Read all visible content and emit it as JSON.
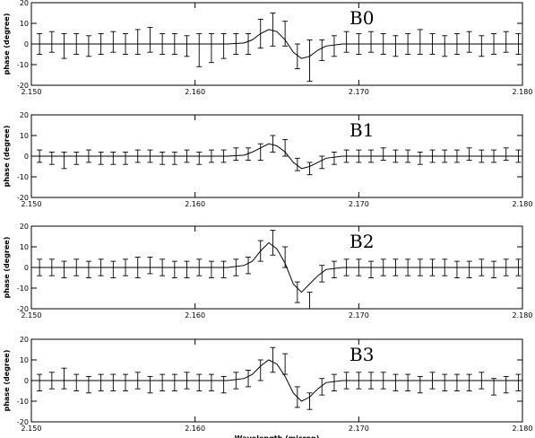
{
  "chart_data": [
    {
      "type": "errorbar",
      "label": "B0",
      "ylabel": "phase (degree)",
      "x": [
        2.1505,
        2.15125,
        2.152,
        2.15275,
        2.1535,
        2.15425,
        2.155,
        2.15575,
        2.1565,
        2.15725,
        2.158,
        2.15875,
        2.1595,
        2.16025,
        2.161,
        2.16175,
        2.1625,
        2.16325,
        2.164,
        2.16475,
        2.1655,
        2.16625,
        2.167,
        2.16775,
        2.1685,
        2.16925,
        2.17,
        2.17075,
        2.1715,
        2.17225,
        2.173,
        2.17375,
        2.1745,
        2.17525,
        2.176,
        2.17675,
        2.1775,
        2.17825,
        2.179,
        2.17975
      ],
      "values": [
        0,
        1,
        -1,
        0,
        -1,
        0,
        1,
        0,
        1,
        2,
        0,
        0,
        -1,
        -3,
        -2,
        -1,
        0,
        0,
        5,
        7,
        5,
        -6,
        -8,
        -3,
        -1,
        1,
        0,
        1,
        0,
        -1,
        0,
        1,
        0,
        -1,
        0,
        1,
        -1,
        0,
        1,
        0
      ],
      "errors": [
        5,
        5,
        6,
        5,
        5,
        5,
        5,
        5,
        6,
        6,
        5,
        5,
        5,
        8,
        7,
        6,
        5,
        5,
        7,
        8,
        6,
        6,
        10,
        5,
        5,
        5,
        5,
        5,
        5,
        5,
        5,
        6,
        5,
        5,
        5,
        5,
        5,
        5,
        5,
        5
      ],
      "model_x": [
        2.15,
        2.162,
        2.163,
        2.1635,
        2.164,
        2.1645,
        2.165,
        2.1655,
        2.166,
        2.1665,
        2.167,
        2.1675,
        2.168,
        2.169,
        2.18
      ],
      "model_values": [
        0,
        0,
        0.5,
        2,
        5,
        7,
        6,
        2,
        -4,
        -7,
        -6,
        -3,
        -1,
        0,
        0
      ],
      "xlim": [
        2.15,
        2.18
      ],
      "ylim": [
        -20,
        20
      ],
      "xticks": [
        {
          "value": 2.15,
          "label": "2.150"
        },
        {
          "value": 2.16,
          "label": "2.160"
        },
        {
          "value": 2.17,
          "label": "2.170"
        },
        {
          "value": 2.18,
          "label": "2.180"
        }
      ],
      "yticks": [
        -20,
        -10,
        0,
        10,
        20
      ]
    },
    {
      "type": "errorbar",
      "label": "B1",
      "ylabel": "phase (degree)",
      "x": [
        2.1505,
        2.15125,
        2.152,
        2.15275,
        2.1535,
        2.15425,
        2.155,
        2.15575,
        2.1565,
        2.15725,
        2.158,
        2.15875,
        2.1595,
        2.16025,
        2.161,
        2.16175,
        2.1625,
        2.16325,
        2.164,
        2.16475,
        2.1655,
        2.16625,
        2.167,
        2.16775,
        2.1685,
        2.16925,
        2.17,
        2.17075,
        2.1715,
        2.17225,
        2.173,
        2.17375,
        2.1745,
        2.17525,
        2.176,
        2.17675,
        2.1775,
        2.17825,
        2.179,
        2.17975
      ],
      "values": [
        0,
        -1,
        -2,
        -1,
        0,
        -1,
        -1,
        -1,
        0,
        0,
        -1,
        -1,
        0,
        -1,
        0,
        0,
        1,
        1,
        2,
        6,
        4,
        -4,
        -6,
        -3,
        -1,
        0,
        0,
        0,
        1,
        0,
        0,
        -1,
        0,
        0,
        0,
        1,
        0,
        0,
        1,
        0
      ],
      "errors": [
        3,
        3,
        4,
        3,
        3,
        3,
        3,
        3,
        3,
        3,
        3,
        3,
        3,
        3,
        3,
        3,
        3,
        3,
        4,
        4,
        4,
        3,
        3,
        3,
        3,
        3,
        3,
        3,
        3,
        3,
        3,
        3,
        3,
        3,
        3,
        3,
        3,
        3,
        3,
        3
      ],
      "model_x": [
        2.15,
        2.162,
        2.163,
        2.1635,
        2.164,
        2.1645,
        2.165,
        2.1655,
        2.166,
        2.1665,
        2.167,
        2.1675,
        2.168,
        2.169,
        2.18
      ],
      "model_values": [
        0,
        0,
        0.5,
        2,
        4,
        6,
        5,
        2,
        -3,
        -6,
        -5,
        -3,
        -1,
        0,
        0
      ],
      "xlim": [
        2.15,
        2.18
      ],
      "ylim": [
        -20,
        20
      ],
      "xticks": [
        {
          "value": 2.15,
          "label": "2.150"
        },
        {
          "value": 2.16,
          "label": "2.160"
        },
        {
          "value": 2.17,
          "label": "2.170"
        },
        {
          "value": 2.18,
          "label": "2.180"
        }
      ],
      "yticks": [
        -20,
        -10,
        0,
        10,
        20
      ]
    },
    {
      "type": "errorbar",
      "label": "B2",
      "ylabel": "phase (degree)",
      "x": [
        2.1505,
        2.15125,
        2.152,
        2.15275,
        2.1535,
        2.15425,
        2.155,
        2.15575,
        2.1565,
        2.15725,
        2.158,
        2.15875,
        2.1595,
        2.16025,
        2.161,
        2.16175,
        2.1625,
        2.16325,
        2.164,
        2.16475,
        2.1655,
        2.16625,
        2.167,
        2.16775,
        2.1685,
        2.16925,
        2.17,
        2.17075,
        2.1715,
        2.17225,
        2.173,
        2.17375,
        2.1745,
        2.17525,
        2.176,
        2.17675,
        2.1775,
        2.17825,
        2.179,
        2.17975
      ],
      "values": [
        0,
        0,
        -1,
        0,
        -1,
        0,
        -1,
        0,
        0,
        1,
        0,
        -1,
        -1,
        0,
        -1,
        -1,
        0,
        1,
        8,
        12,
        5,
        -12,
        -16,
        -3,
        -1,
        0,
        0,
        -1,
        0,
        0,
        0,
        0,
        0,
        0,
        -1,
        -1,
        0,
        -1,
        0,
        0
      ],
      "errors": [
        4,
        4,
        4,
        4,
        4,
        4,
        4,
        4,
        5,
        4,
        4,
        4,
        4,
        4,
        4,
        4,
        4,
        4,
        5,
        6,
        5,
        5,
        4,
        4,
        4,
        4,
        4,
        4,
        4,
        4,
        4,
        4,
        4,
        4,
        4,
        4,
        4,
        4,
        4,
        4
      ],
      "model_x": [
        2.15,
        2.162,
        2.163,
        2.1635,
        2.164,
        2.1645,
        2.165,
        2.1655,
        2.166,
        2.1665,
        2.167,
        2.1675,
        2.168,
        2.169,
        2.18
      ],
      "model_values": [
        0,
        0,
        1,
        3,
        8,
        12,
        9,
        2,
        -8,
        -12,
        -8,
        -4,
        -1,
        0,
        0
      ],
      "xlim": [
        2.15,
        2.18
      ],
      "ylim": [
        -20,
        20
      ],
      "xticks": [
        {
          "value": 2.15,
          "label": "2.150"
        },
        {
          "value": 2.16,
          "label": "2.160"
        },
        {
          "value": 2.17,
          "label": "2.170"
        },
        {
          "value": 2.18,
          "label": "2.180"
        }
      ],
      "yticks": [
        -20,
        -10,
        0,
        10,
        20
      ]
    },
    {
      "type": "errorbar",
      "label": "B3",
      "ylabel": "phase (degree)",
      "xlabel": "Wavelength (micron)",
      "x": [
        2.1505,
        2.15125,
        2.152,
        2.15275,
        2.1535,
        2.15425,
        2.155,
        2.15575,
        2.1565,
        2.15725,
        2.158,
        2.15875,
        2.1595,
        2.16025,
        2.161,
        2.16175,
        2.1625,
        2.16325,
        2.164,
        2.16475,
        2.1655,
        2.16625,
        2.167,
        2.16775,
        2.1685,
        2.16925,
        2.17,
        2.17075,
        2.1715,
        2.17225,
        2.173,
        2.17375,
        2.1745,
        2.17525,
        2.176,
        2.17675,
        2.1775,
        2.17825,
        2.179,
        2.17975
      ],
      "values": [
        -1,
        0,
        1,
        -1,
        -2,
        -1,
        -1,
        -1,
        0,
        -2,
        -1,
        -1,
        0,
        -1,
        -1,
        -2,
        0,
        1,
        5,
        10,
        8,
        -8,
        -10,
        -3,
        -1,
        0,
        0,
        0,
        0,
        -1,
        -1,
        -2,
        0,
        -1,
        -1,
        -1,
        0,
        -3,
        -2,
        -1
      ],
      "errors": [
        4,
        4,
        5,
        4,
        4,
        4,
        4,
        4,
        4,
        4,
        4,
        4,
        4,
        4,
        4,
        4,
        4,
        4,
        5,
        6,
        5,
        5,
        4,
        4,
        4,
        4,
        4,
        4,
        4,
        4,
        4,
        4,
        4,
        4,
        4,
        4,
        4,
        4,
        4,
        4
      ],
      "model_x": [
        2.15,
        2.162,
        2.163,
        2.1635,
        2.164,
        2.1645,
        2.165,
        2.1655,
        2.166,
        2.1665,
        2.167,
        2.1675,
        2.168,
        2.169,
        2.18
      ],
      "model_values": [
        0,
        0,
        1,
        3,
        7,
        10,
        8,
        2,
        -6,
        -10,
        -8,
        -4,
        -1,
        0,
        0
      ],
      "xlim": [
        2.15,
        2.18
      ],
      "ylim": [
        -20,
        20
      ],
      "xticks": [
        {
          "value": 2.15,
          "label": "2.150"
        },
        {
          "value": 2.16,
          "label": "2.160"
        },
        {
          "value": 2.17,
          "label": "2.170"
        },
        {
          "value": 2.18,
          "label": "2.180"
        }
      ],
      "yticks": [
        -20,
        -10,
        0,
        10,
        20
      ]
    }
  ]
}
